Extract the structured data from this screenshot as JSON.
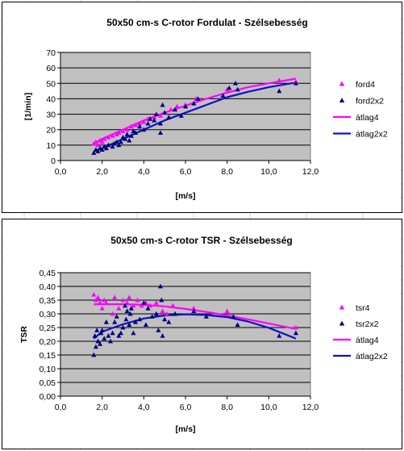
{
  "colors": {
    "magenta": "#ff00ff",
    "navy": "#000080",
    "blue": "#1010c8",
    "plot_bg": "#c0c0c0",
    "sheet_grid": "#d4d4d4"
  },
  "chart_data": [
    {
      "type": "scatter",
      "title": "50x50 cm-s C-rotor Fordulat - Szélsebesség",
      "xlabel": "[m/s]",
      "ylabel": "[1/min]",
      "xlim": [
        0,
        12
      ],
      "ylim": [
        0,
        70
      ],
      "xticks": [
        0,
        2,
        4,
        6,
        8,
        10,
        12
      ],
      "yticks": [
        0,
        10,
        20,
        30,
        40,
        50,
        60,
        70
      ],
      "xtick_labels": [
        "0,0",
        "2,0",
        "4,0",
        "6,0",
        "8,0",
        "10,0",
        "12,0"
      ],
      "ytick_labels": [
        "0",
        "10",
        "20",
        "30",
        "40",
        "50",
        "60",
        "70"
      ],
      "grid": "horizontal",
      "legend_position": "right",
      "series": [
        {
          "name": "ford4",
          "kind": "scatter",
          "color": "#ff00ff",
          "marker": "triangle",
          "x": [
            1.6,
            1.7,
            1.8,
            1.9,
            2.0,
            2.1,
            2.3,
            2.5,
            2.7,
            2.8,
            3.0,
            3.2,
            3.4,
            3.6,
            3.8,
            4.0,
            4.2,
            4.5,
            4.8,
            5.0,
            5.3,
            5.6,
            6.0,
            6.5,
            8.0,
            10.5,
            11.3
          ],
          "y": [
            11,
            12,
            10,
            13,
            12,
            14,
            15,
            16,
            17,
            18,
            19,
            20,
            22,
            23,
            24,
            25,
            27,
            28,
            29,
            31,
            33,
            35,
            36,
            40,
            46,
            52,
            51
          ]
        },
        {
          "name": "ford2x2",
          "kind": "scatter",
          "color": "#000080",
          "marker": "triangle",
          "x": [
            1.6,
            1.7,
            1.8,
            1.9,
            2.0,
            2.1,
            2.2,
            2.3,
            2.5,
            2.6,
            2.7,
            2.8,
            2.9,
            3.0,
            3.1,
            3.2,
            3.3,
            3.4,
            3.5,
            3.6,
            3.8,
            4.0,
            4.2,
            4.3,
            4.5,
            4.6,
            4.8,
            4.8,
            4.9,
            5.0,
            5.2,
            5.5,
            5.8,
            6.0,
            6.4,
            6.6,
            7.8,
            8.1,
            8.4,
            8.5,
            10.5,
            11.3
          ],
          "y": [
            5,
            7,
            6,
            8,
            7,
            9,
            8,
            10,
            9,
            11,
            12,
            10,
            12,
            15,
            14,
            17,
            13,
            16,
            19,
            18,
            22,
            20,
            24,
            27,
            26,
            30,
            18,
            24,
            36,
            31,
            28,
            33,
            29,
            35,
            37,
            40,
            42,
            47,
            50,
            46,
            45,
            50
          ]
        },
        {
          "name": "átlag4",
          "kind": "line",
          "color": "#ff00ff",
          "x": [
            1.6,
            2,
            3,
            4,
            5,
            6,
            7,
            8,
            9,
            10,
            11.3
          ],
          "y": [
            11,
            14,
            20,
            26,
            31,
            35.5,
            40,
            44,
            47.5,
            50,
            53
          ]
        },
        {
          "name": "átlag2x2",
          "kind": "line",
          "color": "#1010c8",
          "x": [
            1.6,
            2,
            3,
            4,
            5,
            6,
            7,
            8,
            9,
            10,
            11.3
          ],
          "y": [
            6,
            8,
            14,
            20,
            26,
            31,
            36,
            41,
            44.5,
            47.5,
            50.5
          ]
        }
      ]
    },
    {
      "type": "scatter",
      "title": "50x50 cm-s C-rotor TSR - Szélsebesség",
      "xlabel": "[m/s]",
      "ylabel": "TSR",
      "xlim": [
        0,
        12
      ],
      "ylim": [
        0,
        0.45
      ],
      "xticks": [
        0,
        2,
        4,
        6,
        8,
        10,
        12
      ],
      "yticks": [
        0,
        0.05,
        0.1,
        0.15,
        0.2,
        0.25,
        0.3,
        0.35,
        0.4,
        0.45
      ],
      "xtick_labels": [
        "0,0",
        "2,0",
        "4,0",
        "6,0",
        "8,0",
        "10,0",
        "12,0"
      ],
      "ytick_labels": [
        "0,00",
        "0,05",
        "0,10",
        "0,15",
        "0,20",
        "0,25",
        "0,30",
        "0,35",
        "0,40",
        "0,45"
      ],
      "grid": "horizontal",
      "legend_position": "right",
      "series": [
        {
          "name": "tsr4",
          "kind": "scatter",
          "color": "#ff00ff",
          "marker": "triangle",
          "x": [
            1.6,
            1.7,
            1.8,
            1.9,
            2.0,
            2.1,
            2.2,
            2.5,
            2.6,
            2.8,
            3.0,
            3.2,
            3.3,
            3.5,
            3.7,
            3.9,
            4.1,
            4.3,
            4.6,
            4.9,
            5.1,
            5.4,
            6.4,
            8.0,
            11.3
          ],
          "y": [
            0.37,
            0.35,
            0.36,
            0.34,
            0.32,
            0.35,
            0.34,
            0.3,
            0.36,
            0.32,
            0.35,
            0.34,
            0.36,
            0.33,
            0.35,
            0.33,
            0.34,
            0.33,
            0.34,
            0.31,
            0.3,
            0.33,
            0.32,
            0.31,
            0.25
          ]
        },
        {
          "name": "tsr2x2",
          "kind": "scatter",
          "color": "#000080",
          "marker": "triangle",
          "x": [
            1.6,
            1.65,
            1.7,
            1.75,
            1.8,
            1.9,
            1.95,
            2.0,
            2.1,
            2.2,
            2.3,
            2.4,
            2.5,
            2.6,
            2.7,
            2.8,
            2.9,
            3.0,
            3.1,
            3.15,
            3.2,
            3.3,
            3.35,
            3.4,
            3.5,
            3.6,
            3.8,
            4.0,
            4.1,
            4.2,
            4.4,
            4.6,
            4.7,
            4.8,
            4.85,
            4.9,
            5.0,
            5.2,
            5.5,
            6.4,
            7.0,
            8.3,
            8.5,
            10.5,
            11.3
          ],
          "y": [
            0.15,
            0.22,
            0.18,
            0.24,
            0.2,
            0.19,
            0.23,
            0.24,
            0.21,
            0.27,
            0.22,
            0.2,
            0.23,
            0.27,
            0.29,
            0.22,
            0.23,
            0.25,
            0.33,
            0.28,
            0.31,
            0.26,
            0.3,
            0.32,
            0.23,
            0.27,
            0.28,
            0.34,
            0.26,
            0.32,
            0.29,
            0.3,
            0.24,
            0.4,
            0.35,
            0.22,
            0.28,
            0.27,
            0.3,
            0.31,
            0.29,
            0.29,
            0.26,
            0.22,
            0.23
          ]
        },
        {
          "name": "átlag4",
          "kind": "line",
          "color": "#ff00ff",
          "x": [
            1.6,
            2,
            3,
            4,
            5,
            6,
            7,
            8,
            9,
            10,
            11.3
          ],
          "y": [
            0.335,
            0.335,
            0.335,
            0.333,
            0.327,
            0.318,
            0.307,
            0.294,
            0.28,
            0.265,
            0.245
          ]
        },
        {
          "name": "átlag2x2",
          "kind": "line",
          "color": "#1010c8",
          "x": [
            1.6,
            2,
            3,
            4,
            5,
            6,
            7,
            8,
            9,
            10,
            11.3
          ],
          "y": [
            0.21,
            0.235,
            0.262,
            0.283,
            0.294,
            0.298,
            0.296,
            0.288,
            0.272,
            0.249,
            0.21
          ]
        }
      ]
    }
  ]
}
